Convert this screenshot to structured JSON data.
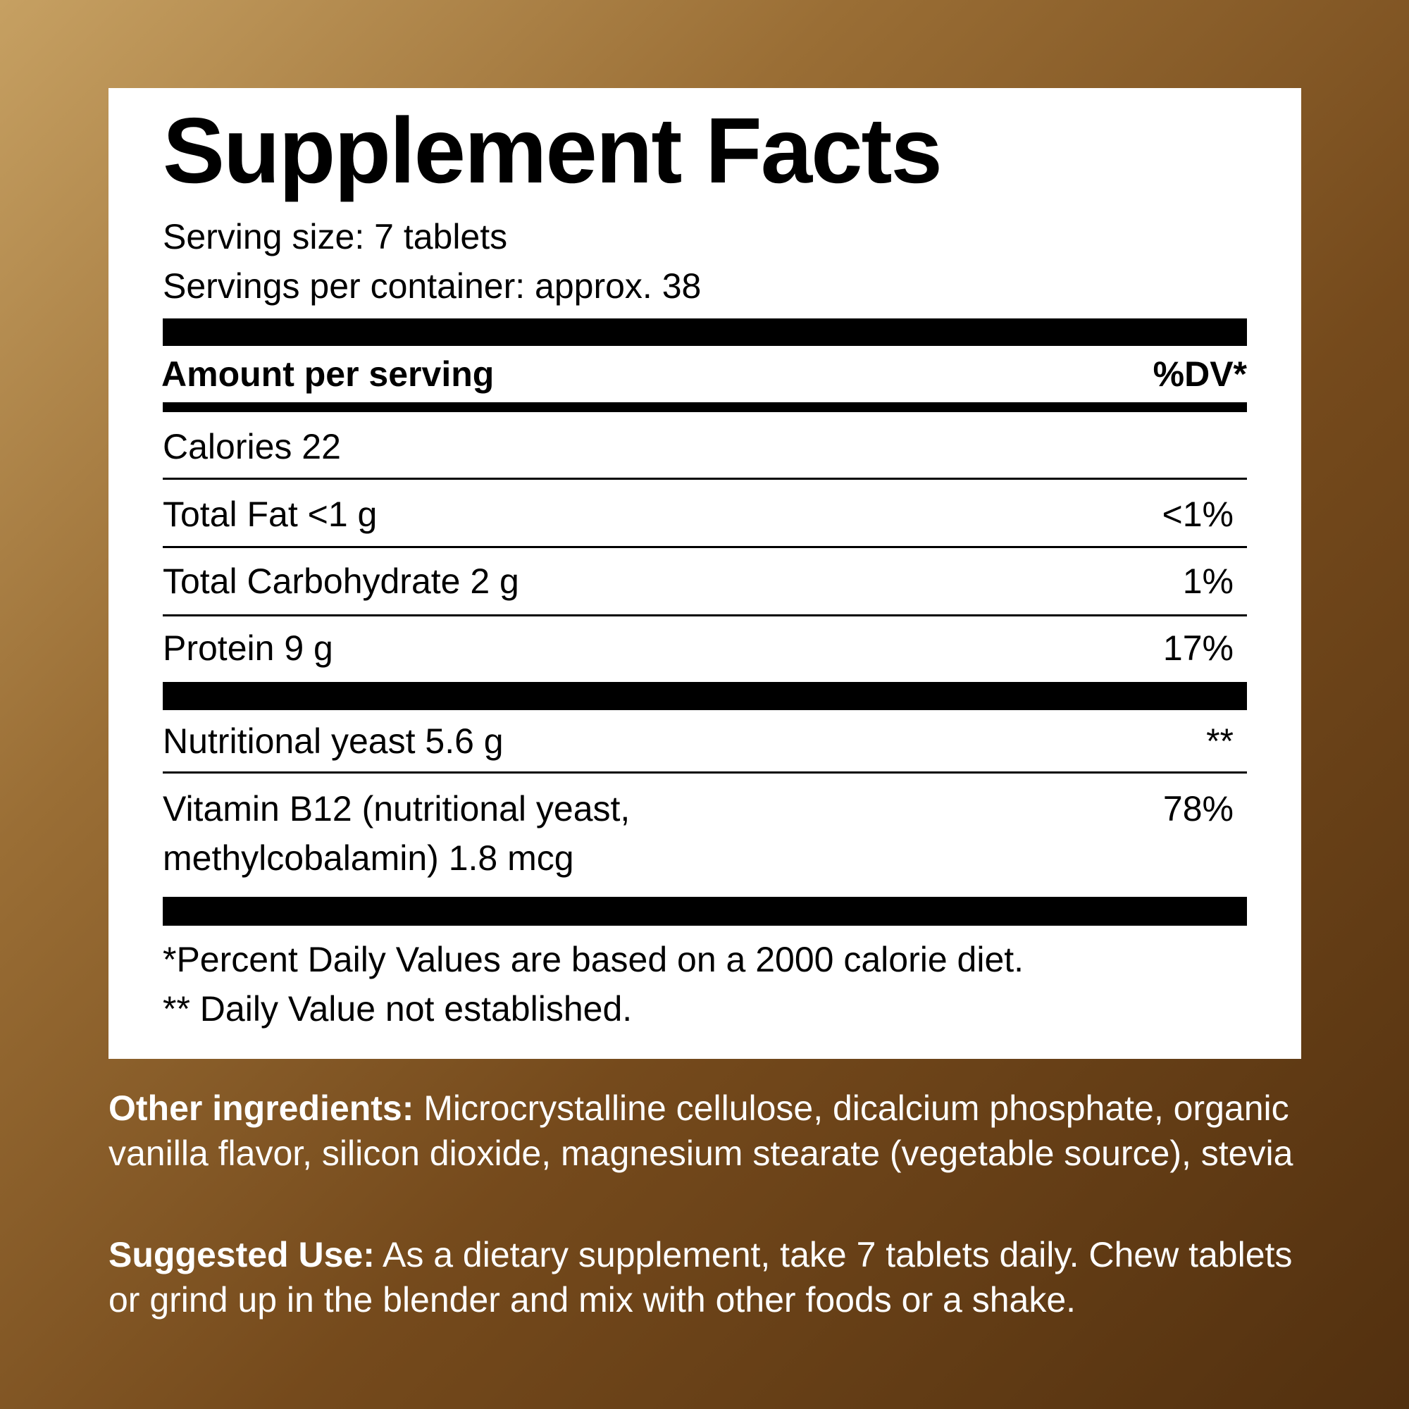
{
  "title": "Supplement Facts",
  "serving_size": "Serving size: 7 tablets",
  "servings_per_container": "Servings per container: approx. 38",
  "header": {
    "amount": "Amount per serving",
    "dv": "%DV*"
  },
  "rows": [
    {
      "label": "Calories 22",
      "dv": ""
    },
    {
      "label": "Total Fat <1 g",
      "dv": "<1%"
    },
    {
      "label": "Total Carbohydrate 2 g",
      "dv": "1%"
    },
    {
      "label": "Protein 9 g",
      "dv": "17%"
    },
    {
      "label": "Nutritional yeast 5.6 g",
      "dv": "**"
    },
    {
      "label_line1": "Vitamin B12 (nutritional yeast,",
      "label_line2": "methylcobalamin) 1.8 mcg",
      "dv": "78%"
    }
  ],
  "footnotes": [
    "*Percent Daily Values are based on a 2000 calorie diet.",
    "** Daily Value not established."
  ],
  "other_ingredients": {
    "label": "Other ingredients:",
    "text": " Microcrystalline cellulose, dicalcium phosphate, organic vanilla flavor, silicon dioxide, magnesium stearate (vegetable source), stevia"
  },
  "suggested_use": {
    "label": "Suggested Use:",
    "text": " As a dietary supplement, take 7 tablets daily. Chew tablets or grind up in the blender and mix with other foods or a shake."
  },
  "colors": {
    "background_light": "#c6a062",
    "background_dark": "#52300f",
    "panel": "#ffffff",
    "text": "#000000"
  }
}
